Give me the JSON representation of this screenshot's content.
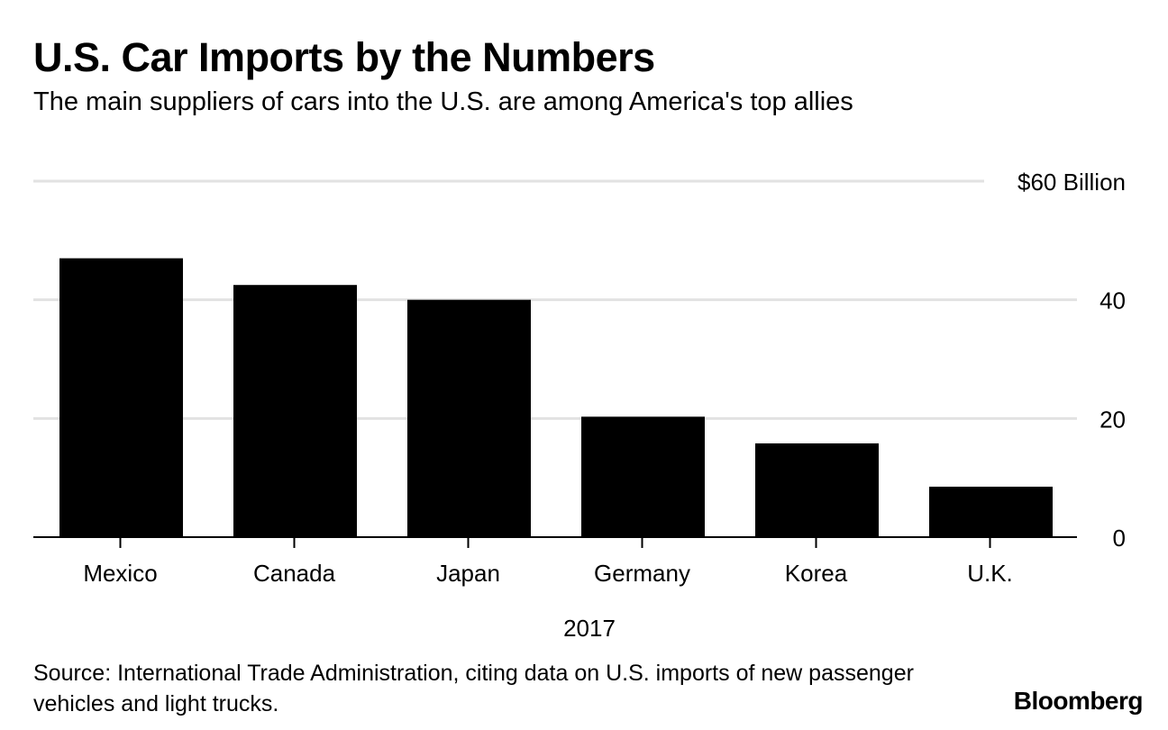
{
  "header": {
    "title": "U.S. Car Imports by the Numbers",
    "subtitle": "The main suppliers of cars into the U.S. are among America's top allies"
  },
  "footer": {
    "source": "Source: International Trade Administration, citing data on U.S. imports of new passenger vehicles and light trucks.",
    "logo": "Bloomberg"
  },
  "chart_data": {
    "type": "bar",
    "title": "U.S. Car Imports by the Numbers",
    "subtitle": "The main suppliers of cars into the U.S. are among America's top allies",
    "categories": [
      "Mexico",
      "Canada",
      "Japan",
      "Germany",
      "Korea",
      "U.K."
    ],
    "values": [
      47,
      42.5,
      40,
      20.3,
      15.8,
      8.5
    ],
    "xlabel": "2017",
    "ylabel": "",
    "ylim": [
      0,
      60
    ],
    "yticks": [
      0,
      20,
      40,
      60
    ],
    "ytick_labels": [
      "0",
      "20",
      "40",
      "$60 Billion"
    ],
    "grid": true,
    "bar_color": "#000000",
    "grid_color": "#e2e2e2"
  }
}
